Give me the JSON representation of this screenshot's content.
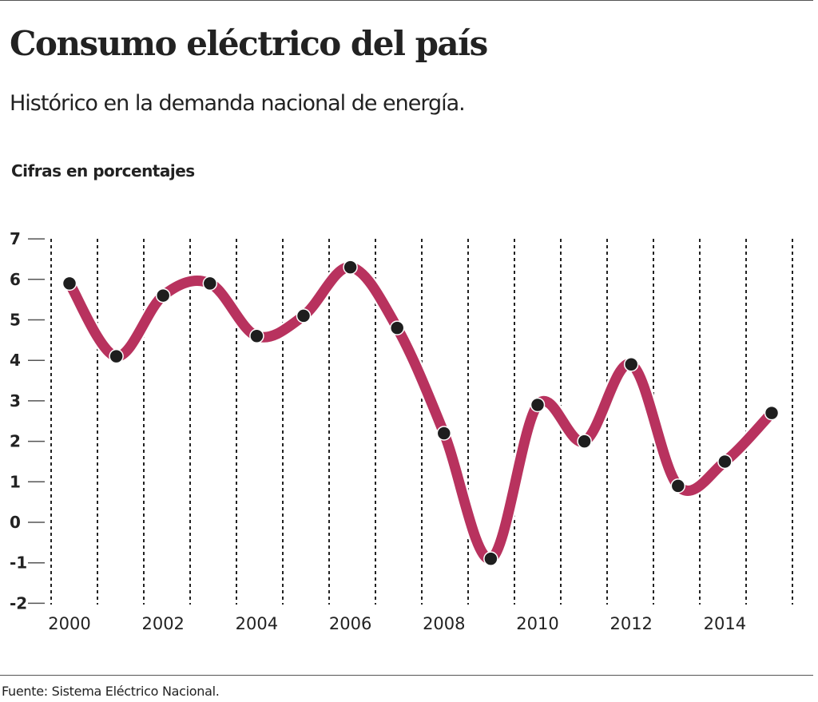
{
  "header": {
    "title": "Consumo eléctrico del país",
    "subtitle": "Histórico en la demanda nacional de energía.",
    "units": "Cifras en porcentajes"
  },
  "footer": {
    "source": "Fuente: Sistema Eléctrico Nacional."
  },
  "chart_data": {
    "type": "line",
    "title": "Consumo eléctrico del país",
    "ylabel": "Cifras en porcentajes",
    "x": [
      2000,
      2001,
      2002,
      2003,
      2004,
      2005,
      2006,
      2007,
      2008,
      2009,
      2010,
      2011,
      2012,
      2013,
      2014,
      2015
    ],
    "values": [
      5.9,
      4.1,
      5.6,
      5.9,
      4.6,
      5.1,
      6.3,
      4.8,
      2.2,
      -0.9,
      2.9,
      2.0,
      3.9,
      0.9,
      1.5,
      2.7
    ],
    "xticks": [
      "2000",
      "2002",
      "2004",
      "2006",
      "2008",
      "2010",
      "2012",
      "2014"
    ],
    "yticks": [
      "7",
      "6",
      "5",
      "4",
      "3",
      "2",
      "1",
      "0",
      "-1",
      "-2"
    ],
    "ylim": [
      -2,
      7
    ],
    "grid": "vertical dashed",
    "line_color": "#b8325e",
    "marker_color": "#1e1e1e",
    "smooth": true
  }
}
